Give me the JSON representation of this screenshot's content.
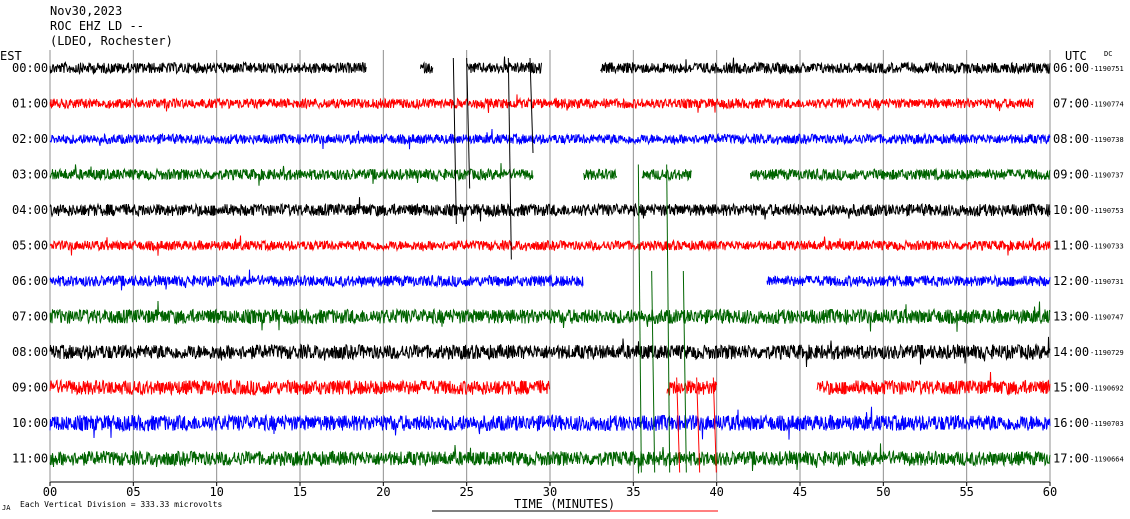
{
  "header": {
    "date": "Nov30,2023",
    "station": "ROC EHZ LD --",
    "network": "(LDEO, Rochester)"
  },
  "left_timezone": "EST",
  "right_timezone": "UTC",
  "dc_label": "DC",
  "footer": {
    "scale_note": "Each Vertical Division = 333.33 microvolts",
    "corner_mark": "JA"
  },
  "chart_data": {
    "type": "line",
    "title": "",
    "xlabel": "TIME (MINUTES)",
    "ylabel": "",
    "xlim": [
      0,
      60
    ],
    "x_ticks": [
      "00",
      "05",
      "10",
      "15",
      "20",
      "25",
      "30",
      "35",
      "40",
      "45",
      "50",
      "55",
      "60"
    ],
    "x_tick_values": [
      0,
      5,
      10,
      15,
      20,
      25,
      30,
      35,
      40,
      45,
      50,
      55,
      60
    ],
    "grid": true,
    "trace_colors": [
      "#000000",
      "#ff0000",
      "#0000ff",
      "#006400"
    ],
    "rows": [
      {
        "est": "00:00",
        "utc": "06:00",
        "dc": "-1190751",
        "color": "#000000",
        "gaps": [
          [
            19.0,
            22.2
          ],
          [
            23.0,
            25.0
          ],
          [
            29.5,
            33.0
          ]
        ],
        "amp": 0.9
      },
      {
        "est": "01:00",
        "utc": "07:00",
        "dc": "-1190774",
        "color": "#ff0000",
        "gaps": [
          [
            59.0,
            60.0
          ]
        ],
        "amp": 0.8
      },
      {
        "est": "02:00",
        "utc": "08:00",
        "dc": "-1190738",
        "color": "#0000ff",
        "gaps": [],
        "amp": 0.8
      },
      {
        "est": "03:00",
        "utc": "09:00",
        "dc": "-1190737",
        "color": "#006400",
        "gaps": [
          [
            29.0,
            32.0
          ],
          [
            34.0,
            35.5
          ],
          [
            38.5,
            42.0
          ]
        ],
        "amp": 0.9
      },
      {
        "est": "04:00",
        "utc": "10:00",
        "dc": "-1190753",
        "color": "#000000",
        "gaps": [],
        "amp": 1.0
      },
      {
        "est": "05:00",
        "utc": "11:00",
        "dc": "-1190733",
        "color": "#ff0000",
        "gaps": [],
        "amp": 0.8
      },
      {
        "est": "06:00",
        "utc": "12:00",
        "dc": "-1190731",
        "color": "#0000ff",
        "gaps": [
          [
            32.0,
            43.0
          ]
        ],
        "amp": 0.9
      },
      {
        "est": "07:00",
        "utc": "13:00",
        "dc": "-1190747",
        "color": "#006400",
        "gaps": [],
        "amp": 1.2
      },
      {
        "est": "08:00",
        "utc": "14:00",
        "dc": "-1190729",
        "color": "#000000",
        "gaps": [],
        "amp": 1.2
      },
      {
        "est": "09:00",
        "utc": "15:00",
        "dc": "-1190692",
        "color": "#ff0000",
        "gaps": [
          [
            30.0,
            37.0
          ],
          [
            40.0,
            46.0
          ]
        ],
        "amp": 1.2
      },
      {
        "est": "10:00",
        "utc": "16:00",
        "dc": "-1190703",
        "color": "#0000ff",
        "gaps": [],
        "amp": 1.3
      },
      {
        "est": "11:00",
        "utc": "17:00",
        "dc": "-1190664",
        "color": "#006400",
        "gaps": [],
        "amp": 1.2
      }
    ]
  }
}
